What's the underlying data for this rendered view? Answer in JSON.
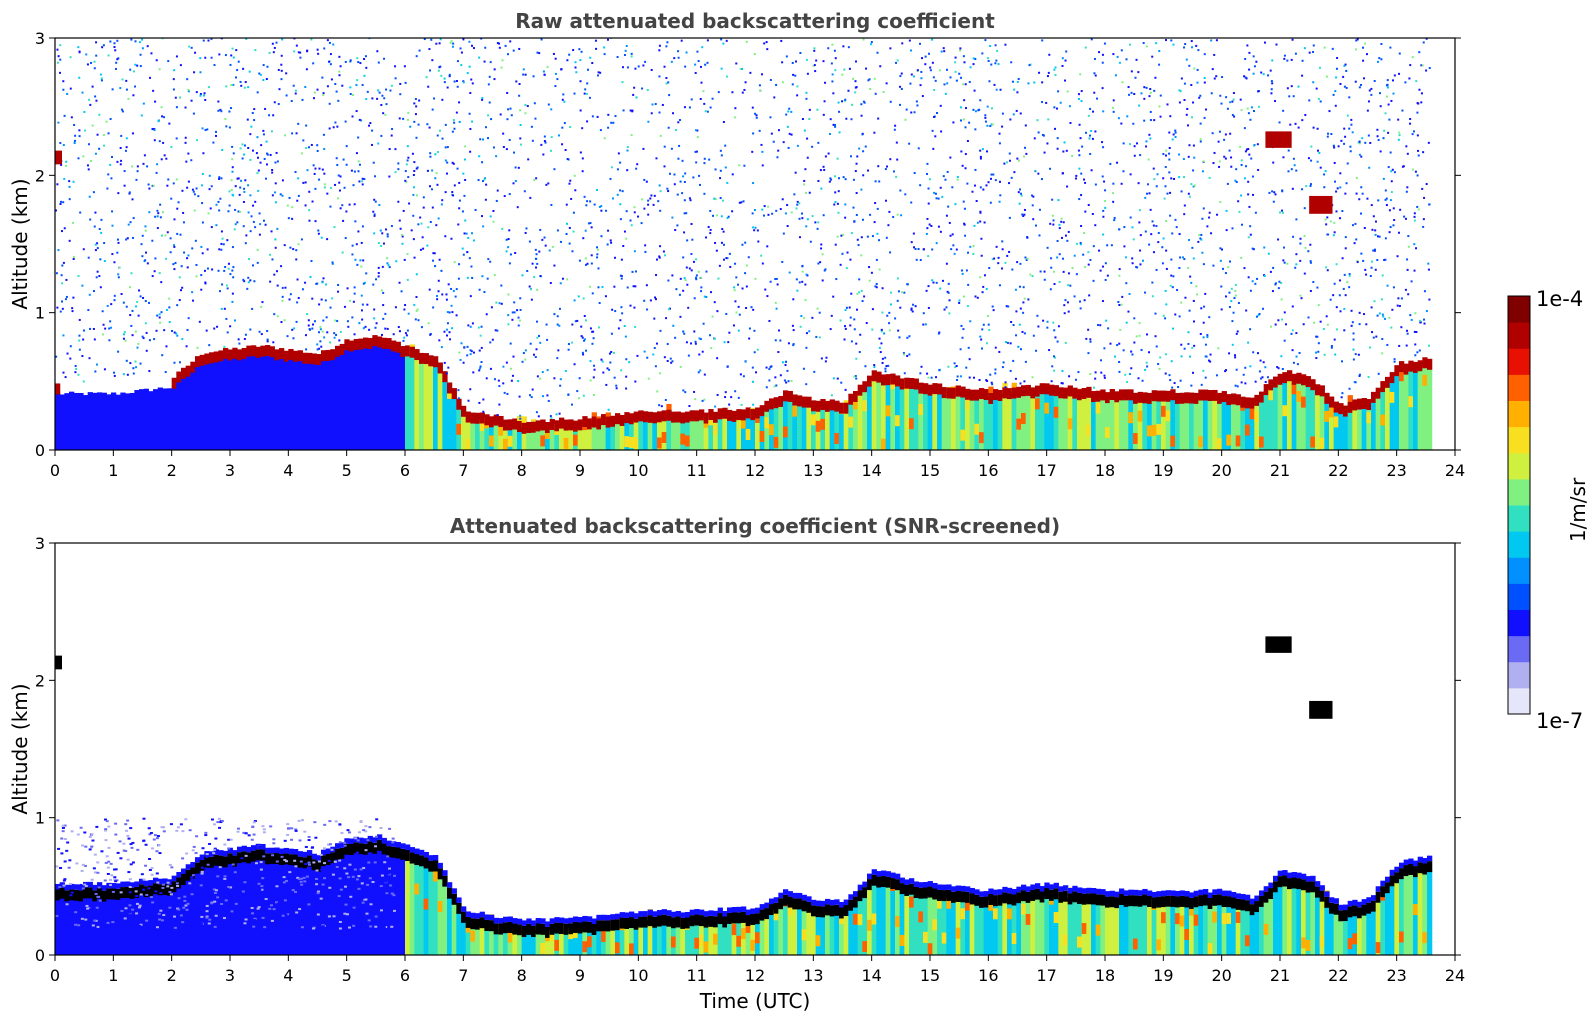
{
  "chart_data": [
    {
      "type": "heatmap",
      "title": "Raw attenuated backscattering coefficient",
      "xlabel": "",
      "ylabel": "Altitude (km)",
      "xlim": [
        0,
        24
      ],
      "ylim": [
        0,
        3
      ],
      "xticks": [
        "0",
        "1",
        "2",
        "3",
        "4",
        "5",
        "6",
        "7",
        "8",
        "9",
        "10",
        "11",
        "12",
        "13",
        "14",
        "15",
        "16",
        "17",
        "18",
        "19",
        "20",
        "21",
        "22",
        "23",
        "24"
      ],
      "yticks": [
        "0",
        "1",
        "2",
        "3"
      ],
      "data_end_hour": 23.55,
      "boundary_layer_top_km": [
        [
          0,
          0.45
        ],
        [
          1.0,
          0.45
        ],
        [
          2.0,
          0.5
        ],
        [
          2.5,
          0.68
        ],
        [
          3.5,
          0.73
        ],
        [
          4.5,
          0.67
        ],
        [
          5.0,
          0.78
        ],
        [
          5.5,
          0.8
        ],
        [
          6.0,
          0.73
        ],
        [
          6.5,
          0.65
        ],
        [
          7.0,
          0.25
        ],
        [
          8.0,
          0.18
        ],
        [
          9.0,
          0.2
        ],
        [
          10.0,
          0.25
        ],
        [
          11.0,
          0.25
        ],
        [
          12.0,
          0.28
        ],
        [
          12.5,
          0.4
        ],
        [
          13.0,
          0.33
        ],
        [
          13.5,
          0.32
        ],
        [
          14.0,
          0.55
        ],
        [
          15.0,
          0.45
        ],
        [
          16.0,
          0.4
        ],
        [
          17.0,
          0.45
        ],
        [
          18.0,
          0.4
        ],
        [
          19.0,
          0.4
        ],
        [
          20.0,
          0.4
        ],
        [
          20.5,
          0.35
        ],
        [
          21.0,
          0.55
        ],
        [
          21.5,
          0.5
        ],
        [
          22.0,
          0.3
        ],
        [
          22.5,
          0.35
        ],
        [
          23.0,
          0.6
        ],
        [
          23.55,
          0.65
        ]
      ],
      "cloud_patches_km": [
        {
          "x": [
            20.75,
            21.2
          ],
          "y": [
            2.2,
            2.32
          ]
        },
        {
          "x": [
            21.5,
            21.9
          ],
          "y": [
            1.72,
            1.85
          ]
        },
        {
          "x": [
            0.0,
            0.12
          ],
          "y": [
            2.08,
            2.18
          ]
        }
      ]
    },
    {
      "type": "heatmap",
      "title": "Attenuated backscattering coefficient (SNR-screened)",
      "xlabel": "Time (UTC)",
      "ylabel": "Altitude (km)",
      "xlim": [
        0,
        24
      ],
      "ylim": [
        0,
        3
      ],
      "xticks": [
        "0",
        "1",
        "2",
        "3",
        "4",
        "5",
        "6",
        "7",
        "8",
        "9",
        "10",
        "11",
        "12",
        "13",
        "14",
        "15",
        "16",
        "17",
        "18",
        "19",
        "20",
        "21",
        "22",
        "23",
        "24"
      ],
      "yticks": [
        "0",
        "1",
        "2",
        "3"
      ],
      "data_end_hour": 23.55
    }
  ],
  "colorbar": {
    "label": "1/m/sr",
    "min_label": "1e-7",
    "max_label": "1e-4",
    "colors": [
      "#e6e6fa",
      "#b0b0f0",
      "#6a6af5",
      "#1010ff",
      "#0050ff",
      "#0090ff",
      "#00c8f0",
      "#30e0c0",
      "#80f080",
      "#d0f040",
      "#f8e020",
      "#ffb000",
      "#ff6000",
      "#e81000",
      "#b00000",
      "#800000"
    ]
  }
}
